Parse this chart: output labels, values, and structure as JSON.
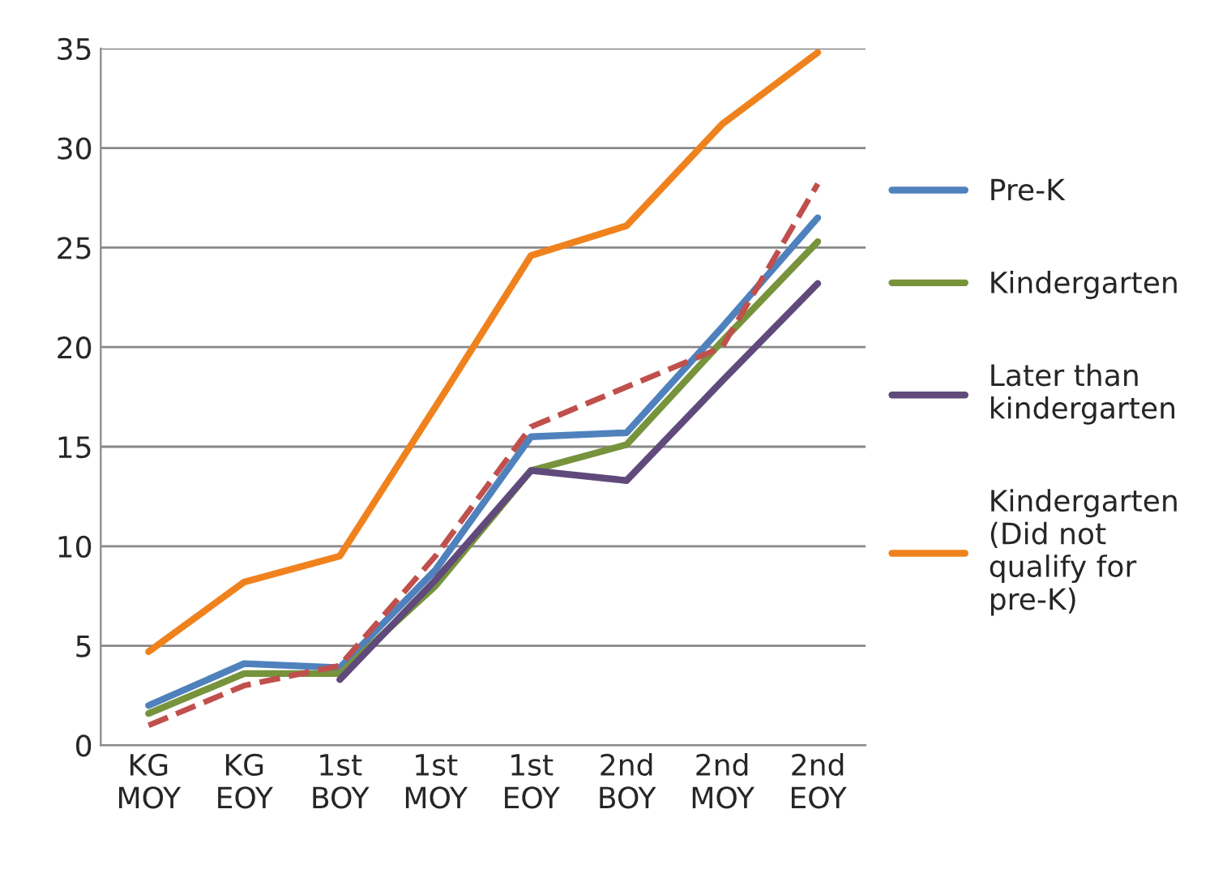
{
  "chart_data": {
    "type": "line",
    "categories": [
      "KG\nMOY",
      "KG\nEOY",
      "1st\nBOY",
      "1st\nMOY",
      "1st\nEOY",
      "2nd\nBOY",
      "2nd\nMOY",
      "2nd\nEOY"
    ],
    "series": [
      {
        "name": "Pre-K",
        "color": "#4f81bd",
        "values": [
          2.0,
          4.1,
          3.9,
          8.8,
          15.5,
          15.7,
          21.0,
          26.5
        ]
      },
      {
        "name": "Kindergarten",
        "color": "#77933c",
        "values": [
          1.6,
          3.6,
          3.6,
          8.0,
          13.8,
          15.1,
          20.3,
          25.3
        ]
      },
      {
        "name": "Later than\nkindergarten",
        "color": "#604a7b",
        "values": [
          null,
          null,
          3.3,
          8.3,
          13.8,
          13.3,
          18.3,
          23.2
        ]
      },
      {
        "name": "Kindergarten\n(Did not\nqualify for\npre-K)",
        "color": "#f0821e",
        "values": [
          4.7,
          8.2,
          9.5,
          17.0,
          24.6,
          26.1,
          31.2,
          34.8
        ]
      },
      {
        "color": "#c0504d",
        "line_style": "dashed",
        "values": [
          1.0,
          3.0,
          4.0,
          9.5,
          16.0,
          18.0,
          20.0,
          28.2
        ]
      }
    ],
    "ylim": [
      0,
      35
    ],
    "yticks": [
      0,
      5,
      10,
      15,
      20,
      25,
      30,
      35
    ],
    "grid": "y",
    "legend": "right",
    "marker": "none"
  }
}
